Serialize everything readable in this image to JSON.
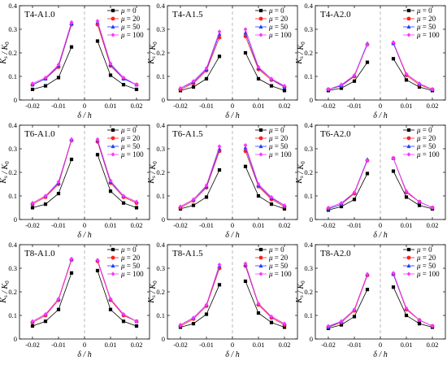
{
  "figure": {
    "series_styles": [
      {
        "color": "#000000",
        "marker": "square"
      },
      {
        "color": "#ff2020",
        "marker": "circle"
      },
      {
        "color": "#1f3fff",
        "marker": "triangle"
      },
      {
        "color": "#ff33ff",
        "marker": "diamond"
      }
    ],
    "ref_line_color": "#aaaaaa",
    "mu_symbol": "μ",
    "equals": "="
  },
  "chart_data": [
    {
      "type": "line",
      "title": "T4-A1.0",
      "xlabel": "δ / h",
      "ylabel": "K_s / K_0",
      "ylim": [
        0,
        0.4
      ],
      "xlim": [
        -0.025,
        0.025
      ],
      "xticks": [
        "-0.02",
        "-0.01",
        "0",
        "0.01",
        "0.02"
      ],
      "yticks": [
        "0",
        "0.1",
        "0.2",
        "0.3",
        "0.4"
      ],
      "x": [
        -0.02,
        -0.015,
        -0.01,
        -0.005,
        0.005,
        0.01,
        0.015,
        0.02
      ],
      "legend": {
        "placement": "top-right"
      },
      "series": [
        {
          "name": "0",
          "values": [
            0.045,
            0.06,
            0.095,
            0.225,
            0.25,
            0.105,
            0.065,
            0.045
          ]
        },
        {
          "name": "20",
          "values": [
            0.065,
            0.09,
            0.14,
            0.32,
            0.32,
            0.145,
            0.09,
            0.065
          ]
        },
        {
          "name": "50",
          "values": [
            0.065,
            0.09,
            0.145,
            0.325,
            0.33,
            0.15,
            0.09,
            0.065
          ]
        },
        {
          "name": "100",
          "values": [
            0.07,
            0.095,
            0.15,
            0.33,
            0.335,
            0.155,
            0.095,
            0.065
          ]
        }
      ]
    },
    {
      "type": "line",
      "title": "T4-A1.5",
      "xlabel": "δ / h",
      "ylabel": "K_s / K_0",
      "ylim": [
        0,
        0.4
      ],
      "xlim": [
        -0.025,
        0.025
      ],
      "xticks": [
        "-0.02",
        "-0.01",
        "0",
        "0.01",
        "0.02"
      ],
      "yticks": [
        "0",
        "0.1",
        "0.2",
        "0.3",
        "0.4"
      ],
      "x": [
        -0.02,
        -0.015,
        -0.01,
        -0.005,
        0.005,
        0.01,
        0.015,
        0.02
      ],
      "legend": {
        "placement": "top-right"
      },
      "series": [
        {
          "name": "0",
          "values": [
            0.04,
            0.055,
            0.09,
            0.185,
            0.2,
            0.09,
            0.06,
            0.04
          ]
        },
        {
          "name": "20",
          "values": [
            0.045,
            0.07,
            0.125,
            0.265,
            0.27,
            0.13,
            0.085,
            0.055
          ]
        },
        {
          "name": "50",
          "values": [
            0.05,
            0.075,
            0.13,
            0.28,
            0.285,
            0.135,
            0.09,
            0.055
          ]
        },
        {
          "name": "100",
          "values": [
            0.05,
            0.08,
            0.135,
            0.29,
            0.3,
            0.14,
            0.09,
            0.06
          ]
        }
      ]
    },
    {
      "type": "line",
      "title": "T4-A2.0",
      "xlabel": "δ / h",
      "ylabel": "K_s / K_0",
      "ylim": [
        0,
        0.4
      ],
      "xlim": [
        -0.025,
        0.025
      ],
      "xticks": [
        "-0.02",
        "-0.01",
        "0",
        "0.01",
        "0.02"
      ],
      "yticks": [
        "0",
        "0.1",
        "0.2",
        "0.3",
        "0.4"
      ],
      "x": [
        -0.02,
        -0.015,
        -0.01,
        -0.005,
        0.005,
        0.01,
        0.015,
        0.02
      ],
      "legend": {
        "placement": "top-right"
      },
      "series": [
        {
          "name": "0",
          "values": [
            0.04,
            0.05,
            0.08,
            0.16,
            0.175,
            0.085,
            0.055,
            0.04
          ]
        },
        {
          "name": "20",
          "values": [
            0.045,
            0.06,
            0.1,
            0.235,
            0.24,
            0.105,
            0.065,
            0.045
          ]
        },
        {
          "name": "50",
          "values": [
            0.045,
            0.06,
            0.105,
            0.24,
            0.24,
            0.11,
            0.07,
            0.045
          ]
        },
        {
          "name": "100",
          "values": [
            0.045,
            0.065,
            0.105,
            0.235,
            0.245,
            0.11,
            0.07,
            0.045
          ]
        }
      ]
    },
    {
      "type": "line",
      "title": "T6-A1.0",
      "xlabel": "δ / h",
      "ylabel": "K_s / K_0",
      "ylim": [
        0,
        0.4
      ],
      "xlim": [
        -0.025,
        0.025
      ],
      "xticks": [
        "-0.02",
        "-0.01",
        "0",
        "0.01",
        "0.02"
      ],
      "yticks": [
        "0",
        "0.1",
        "0.2",
        "0.3",
        "0.4"
      ],
      "x": [
        -0.02,
        -0.015,
        -0.01,
        -0.005,
        0.005,
        0.01,
        0.015,
        0.02
      ],
      "legend": {
        "placement": "top-right"
      },
      "series": [
        {
          "name": "0",
          "values": [
            0.05,
            0.065,
            0.11,
            0.255,
            0.275,
            0.12,
            0.07,
            0.05
          ]
        },
        {
          "name": "20",
          "values": [
            0.065,
            0.095,
            0.15,
            0.335,
            0.33,
            0.155,
            0.095,
            0.07
          ]
        },
        {
          "name": "50",
          "values": [
            0.07,
            0.1,
            0.155,
            0.34,
            0.335,
            0.16,
            0.1,
            0.075
          ]
        },
        {
          "name": "100",
          "values": [
            0.07,
            0.1,
            0.16,
            0.34,
            0.34,
            0.165,
            0.1,
            0.075
          ]
        }
      ]
    },
    {
      "type": "line",
      "title": "T6-A1.5",
      "xlabel": "δ / h",
      "ylabel": "K_s / K_0",
      "ylim": [
        0,
        0.4
      ],
      "xlim": [
        -0.025,
        0.025
      ],
      "xticks": [
        "-0.02",
        "-0.01",
        "0",
        "0.01",
        "0.02"
      ],
      "yticks": [
        "0",
        "0.1",
        "0.2",
        "0.3",
        "0.4"
      ],
      "x": [
        -0.02,
        -0.015,
        -0.01,
        -0.005,
        0.005,
        0.01,
        0.015,
        0.02
      ],
      "legend": {
        "placement": "top-right"
      },
      "series": [
        {
          "name": "0",
          "values": [
            0.045,
            0.06,
            0.095,
            0.21,
            0.225,
            0.1,
            0.065,
            0.045
          ]
        },
        {
          "name": "20",
          "values": [
            0.05,
            0.08,
            0.135,
            0.29,
            0.29,
            0.14,
            0.085,
            0.055
          ]
        },
        {
          "name": "50",
          "values": [
            0.055,
            0.085,
            0.14,
            0.3,
            0.305,
            0.145,
            0.09,
            0.06
          ]
        },
        {
          "name": "100",
          "values": [
            0.055,
            0.085,
            0.145,
            0.31,
            0.315,
            0.15,
            0.095,
            0.06
          ]
        }
      ]
    },
    {
      "type": "line",
      "title": "T6-A2.0",
      "xlabel": "δ / h",
      "ylabel": "K_s / K_0",
      "ylim": [
        0,
        0.4
      ],
      "xlim": [
        -0.025,
        0.025
      ],
      "xticks": [
        "-0.02",
        "-0.01",
        "0",
        "0.01",
        "0.02"
      ],
      "yticks": [
        "0",
        "0.1",
        "0.2",
        "0.3",
        "0.4"
      ],
      "x": [
        -0.02,
        -0.015,
        -0.01,
        -0.005,
        0.005,
        0.01,
        0.015,
        0.02
      ],
      "legend": {
        "placement": "top-right"
      },
      "series": [
        {
          "name": "0",
          "values": [
            0.04,
            0.055,
            0.085,
            0.195,
            0.205,
            0.095,
            0.06,
            0.045
          ]
        },
        {
          "name": "20",
          "values": [
            0.045,
            0.065,
            0.11,
            0.25,
            0.26,
            0.115,
            0.075,
            0.05
          ]
        },
        {
          "name": "50",
          "values": [
            0.045,
            0.065,
            0.115,
            0.255,
            0.26,
            0.12,
            0.075,
            0.05
          ]
        },
        {
          "name": "100",
          "values": [
            0.05,
            0.07,
            0.115,
            0.25,
            0.26,
            0.12,
            0.075,
            0.05
          ]
        }
      ]
    },
    {
      "type": "line",
      "title": "T8-A1.0",
      "xlabel": "δ / h",
      "ylabel": "K_s / K_0",
      "ylim": [
        0,
        0.4
      ],
      "xlim": [
        -0.025,
        0.025
      ],
      "xticks": [
        "-0.02",
        "-0.01",
        "0",
        "0.01",
        "0.02"
      ],
      "yticks": [
        "0",
        "0.1",
        "0.2",
        "0.3",
        "0.4"
      ],
      "x": [
        -0.02,
        -0.015,
        -0.01,
        -0.005,
        0.005,
        0.01,
        0.015,
        0.02
      ],
      "legend": {
        "placement": "top-right"
      },
      "series": [
        {
          "name": "0",
          "values": [
            0.055,
            0.075,
            0.125,
            0.28,
            0.29,
            0.125,
            0.075,
            0.055
          ]
        },
        {
          "name": "20",
          "values": [
            0.07,
            0.1,
            0.165,
            0.335,
            0.33,
            0.165,
            0.1,
            0.075
          ]
        },
        {
          "name": "50",
          "values": [
            0.075,
            0.105,
            0.17,
            0.34,
            0.335,
            0.17,
            0.105,
            0.075
          ]
        },
        {
          "name": "100",
          "values": [
            0.075,
            0.105,
            0.17,
            0.34,
            0.335,
            0.17,
            0.105,
            0.075
          ]
        }
      ]
    },
    {
      "type": "line",
      "title": "T8-A1.5",
      "xlabel": "δ / h",
      "ylabel": "K_s / K_0",
      "ylim": [
        0,
        0.4
      ],
      "xlim": [
        -0.025,
        0.025
      ],
      "xticks": [
        "-0.02",
        "-0.01",
        "0",
        "0.01",
        "0.02"
      ],
      "yticks": [
        "0",
        "0.1",
        "0.2",
        "0.3",
        "0.4"
      ],
      "x": [
        -0.02,
        -0.015,
        -0.01,
        -0.005,
        0.005,
        0.01,
        0.015,
        0.02
      ],
      "legend": {
        "placement": "top-right"
      },
      "series": [
        {
          "name": "0",
          "values": [
            0.05,
            0.065,
            0.105,
            0.23,
            0.245,
            0.11,
            0.07,
            0.05
          ]
        },
        {
          "name": "20",
          "values": [
            0.055,
            0.085,
            0.14,
            0.3,
            0.31,
            0.145,
            0.09,
            0.06
          ]
        },
        {
          "name": "50",
          "values": [
            0.06,
            0.09,
            0.145,
            0.31,
            0.315,
            0.15,
            0.095,
            0.065
          ]
        },
        {
          "name": "100",
          "values": [
            0.06,
            0.09,
            0.145,
            0.315,
            0.32,
            0.15,
            0.095,
            0.065
          ]
        }
      ]
    },
    {
      "type": "line",
      "title": "T8-A2.0",
      "xlabel": "δ / h",
      "ylabel": "K_s / K_0",
      "ylim": [
        0,
        0.4
      ],
      "xlim": [
        -0.025,
        0.025
      ],
      "xticks": [
        "-0.02",
        "-0.01",
        "0",
        "0.01",
        "0.02"
      ],
      "yticks": [
        "0",
        "0.1",
        "0.2",
        "0.3",
        "0.4"
      ],
      "x": [
        -0.02,
        -0.015,
        -0.01,
        -0.005,
        0.005,
        0.01,
        0.015,
        0.02
      ],
      "legend": {
        "placement": "top-right"
      },
      "series": [
        {
          "name": "0",
          "values": [
            0.045,
            0.06,
            0.095,
            0.21,
            0.22,
            0.1,
            0.065,
            0.05
          ]
        },
        {
          "name": "20",
          "values": [
            0.05,
            0.07,
            0.12,
            0.27,
            0.275,
            0.125,
            0.08,
            0.055
          ]
        },
        {
          "name": "50",
          "values": [
            0.05,
            0.075,
            0.125,
            0.275,
            0.275,
            0.13,
            0.08,
            0.055
          ]
        },
        {
          "name": "100",
          "values": [
            0.055,
            0.075,
            0.125,
            0.275,
            0.28,
            0.13,
            0.08,
            0.055
          ]
        }
      ]
    }
  ]
}
